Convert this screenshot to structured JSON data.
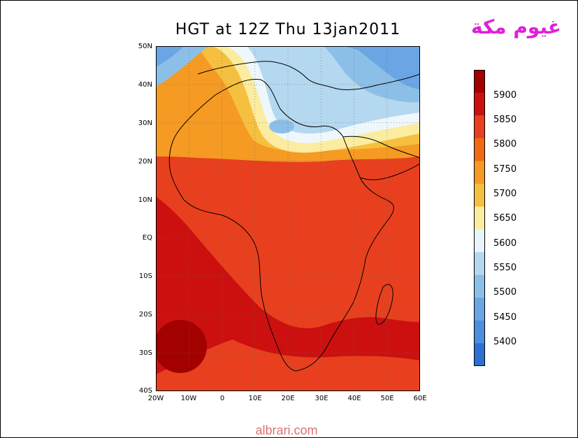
{
  "title": "HGT at 12Z Thu 13jan2011",
  "arabic_caption": "غيوم مكة",
  "credit": "albrari.com",
  "lat_labels": [
    "50N",
    "40N",
    "30N",
    "20N",
    "10N",
    "EQ",
    "10S",
    "20S",
    "30S",
    "40S"
  ],
  "lon_labels": [
    "20W",
    "10W",
    "0",
    "10E",
    "20E",
    "30E",
    "40E",
    "50E",
    "60E"
  ],
  "colorbar": {
    "labels": [
      "5900",
      "5850",
      "5800",
      "5750",
      "5700",
      "5650",
      "5600",
      "5550",
      "5500",
      "5450",
      "5400"
    ],
    "colors": [
      "#a30000",
      "#cc1010",
      "#e8401e",
      "#f06a16",
      "#f59a22",
      "#f5c040",
      "#fbeca0",
      "#e8f4fa",
      "#b4d8f0",
      "#8cbfe8",
      "#6aa6e4",
      "#4c8ee0",
      "#2e70d2"
    ]
  },
  "map": {
    "bounds": {
      "lon": [
        -20,
        60
      ],
      "lat": [
        -40,
        50
      ]
    },
    "background_color": "#e8401e"
  }
}
